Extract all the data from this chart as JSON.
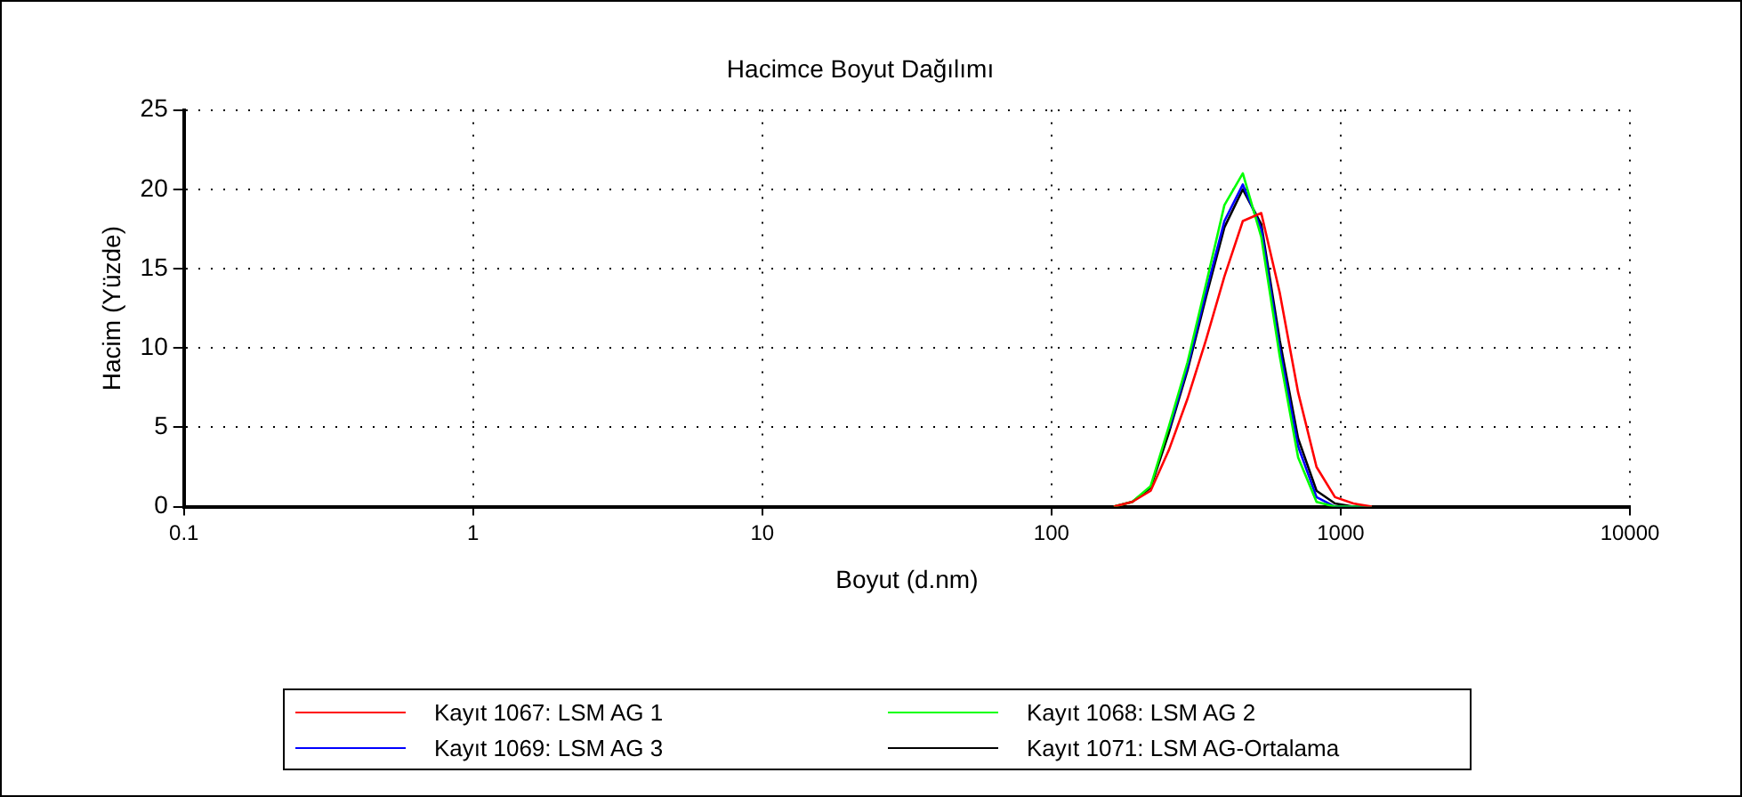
{
  "chart_data": {
    "type": "line",
    "title": "Hacimce Boyut Dağılımı",
    "xlabel": "Boyut (d.nm)",
    "ylabel": "Hacim (Yüzde)",
    "log": "x",
    "xlim": [
      0.1,
      10000
    ],
    "xticks": [
      0.1,
      1,
      10,
      100,
      1000,
      10000
    ],
    "ylim": [
      0,
      25
    ],
    "yticks": [
      0,
      5,
      10,
      15,
      20,
      25
    ],
    "grid": true,
    "legend": "bottom",
    "marker": "none",
    "line_style": "solid",
    "x": [
      164.2,
      190.1,
      220.2,
      255,
      295.3,
      342,
      396.1,
      458.7,
      531.2,
      615.1,
      712.4,
      825,
      955.4,
      1106,
      1281
    ],
    "series": [
      {
        "name": "Kayıt 1067: LSM AG 1",
        "color": "#ff0000",
        "values": [
          0,
          0.3,
          1,
          3.6,
          6.8,
          10.5,
          14.5,
          18,
          18.5,
          13.5,
          7.2,
          2.5,
          0.6,
          0.2,
          0
        ]
      },
      {
        "name": "Kayıt 1068: LSM AG 2",
        "color": "#00ff00",
        "values": [
          0,
          0.3,
          1.3,
          5.1,
          9.1,
          14,
          19,
          21,
          17,
          9.5,
          3.1,
          0.3,
          0,
          0,
          0
        ]
      },
      {
        "name": "Kayıt 1069: LSM AG 3",
        "color": "#0000ff",
        "values": [
          null,
          null,
          null,
          4.9,
          8.8,
          13.5,
          18,
          20.3,
          17.5,
          10,
          3.8,
          0.6,
          0,
          0,
          0
        ]
      },
      {
        "name": "Kayıt 1071: LSM AG-Ortalama",
        "color": "#000000",
        "values": [
          0,
          0.3,
          1.2,
          4.7,
          8.6,
          13.2,
          17.6,
          20,
          17.8,
          10.5,
          4.3,
          1,
          0.2,
          0,
          0
        ]
      }
    ]
  }
}
